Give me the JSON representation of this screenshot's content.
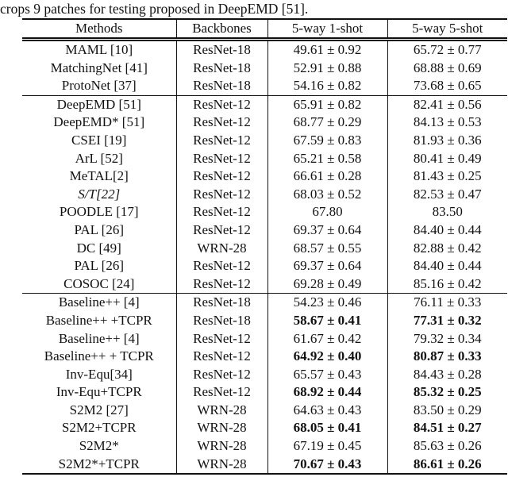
{
  "caption": "crops 9 patches for testing proposed in DeepEMD [51].",
  "colors": {
    "text": "#111111",
    "rule": "#111111",
    "background": "#ffffff"
  },
  "table": {
    "headers": [
      "Methods",
      "Backbones",
      "5-way 1-shot",
      "5-way 5-shot"
    ],
    "sections": [
      {
        "rows": [
          {
            "method": "MAML [10]",
            "backbone": "ResNet-18",
            "one_shot": "49.61 ± 0.92",
            "five_shot": "65.72 ± 0.77",
            "bold_values": false,
            "method_italic": false
          },
          {
            "method": "MatchingNet [41]",
            "backbone": "ResNet-18",
            "one_shot": "52.91 ± 0.88",
            "five_shot": "68.88 ± 0.69",
            "bold_values": false,
            "method_italic": false
          },
          {
            "method": "ProtoNet [37]",
            "backbone": "ResNet-18",
            "one_shot": "54.16 ± 0.82",
            "five_shot": "73.68 ± 0.65",
            "bold_values": false,
            "method_italic": false
          }
        ]
      },
      {
        "rows": [
          {
            "method": "DeepEMD [51]",
            "backbone": "ResNet-12",
            "one_shot": "65.91 ± 0.82",
            "five_shot": "82.41 ± 0.56",
            "bold_values": false,
            "method_italic": false
          },
          {
            "method": "DeepEMD* [51]",
            "backbone": "ResNet-12",
            "one_shot": "68.77 ± 0.29",
            "five_shot": "84.13 ± 0.53",
            "bold_values": false,
            "method_italic": false
          },
          {
            "method": "CSEI [19]",
            "backbone": "ResNet-12",
            "one_shot": "67.59 ± 0.83",
            "five_shot": "81.93 ± 0.36",
            "bold_values": false,
            "method_italic": false
          },
          {
            "method": "ArL [52]",
            "backbone": "ResNet-12",
            "one_shot": "65.21 ± 0.58",
            "five_shot": "80.41 ± 0.49",
            "bold_values": false,
            "method_italic": false
          },
          {
            "method": "MeTAL[2]",
            "backbone": "ResNet-12",
            "one_shot": "66.61 ± 0.28",
            "five_shot": "81.43 ± 0.25",
            "bold_values": false,
            "method_italic": false
          },
          {
            "method": "S/T[22]",
            "backbone": "ResNet-12",
            "one_shot": "68.03 ± 0.52",
            "five_shot": "82.53 ± 0.47",
            "bold_values": false,
            "method_italic": true
          },
          {
            "method": "POODLE [17]",
            "backbone": "ResNet-12",
            "one_shot": "67.80",
            "five_shot": "83.50",
            "bold_values": false,
            "method_italic": false
          },
          {
            "method": "PAL [26]",
            "backbone": "ResNet-12",
            "one_shot": "69.37 ± 0.64",
            "five_shot": "84.40 ± 0.44",
            "bold_values": false,
            "method_italic": false
          },
          {
            "method": "DC [49]",
            "backbone": "WRN-28",
            "one_shot": "68.57 ± 0.55",
            "five_shot": "82.88 ± 0.42",
            "bold_values": false,
            "method_italic": false
          },
          {
            "method": "PAL [26]",
            "backbone": "ResNet-12",
            "one_shot": "69.37 ± 0.64",
            "five_shot": "84.40 ± 0.44",
            "bold_values": false,
            "method_italic": false
          },
          {
            "method": "COSOC [24]",
            "backbone": "ResNet-12",
            "one_shot": "69.28 ± 0.49",
            "five_shot": "85.16 ± 0.42",
            "bold_values": false,
            "method_italic": false
          }
        ]
      },
      {
        "rows": [
          {
            "method": "Baseline++ [4]",
            "backbone": "ResNet-18",
            "one_shot": "54.23 ± 0.46",
            "five_shot": "76.11 ± 0.33",
            "bold_values": false,
            "method_italic": false
          },
          {
            "method": "Baseline++ +TCPR",
            "backbone": "ResNet-18",
            "one_shot": "58.67 ± 0.41",
            "five_shot": "77.31 ± 0.32",
            "bold_values": true,
            "method_italic": false
          },
          {
            "method": "Baseline++ [4]",
            "backbone": "ResNet-12",
            "one_shot": "61.67 ± 0.42",
            "five_shot": "79.32 ± 0.34",
            "bold_values": false,
            "method_italic": false
          },
          {
            "method": "Baseline++ + TCPR",
            "backbone": "ResNet-12",
            "one_shot": "64.92 ± 0.40",
            "five_shot": "80.87 ± 0.33",
            "bold_values": true,
            "method_italic": false
          },
          {
            "method": "Inv-Equ[34]",
            "backbone": "ResNet-12",
            "one_shot": "65.57 ± 0.43",
            "five_shot": "84.43 ± 0.28",
            "bold_values": false,
            "method_italic": false
          },
          {
            "method": "Inv-Equ+TCPR",
            "backbone": "ResNet-12",
            "one_shot": "68.92 ± 0.44",
            "five_shot": "85.32 ± 0.25",
            "bold_values": true,
            "method_italic": false
          },
          {
            "method": "S2M2 [27]",
            "backbone": "WRN-28",
            "one_shot": "64.63 ± 0.43",
            "five_shot": "83.50 ± 0.29",
            "bold_values": false,
            "method_italic": false
          },
          {
            "method": "S2M2+TCPR",
            "backbone": "WRN-28",
            "one_shot": "68.05 ± 0.41",
            "five_shot": "84.51 ± 0.27",
            "bold_values": true,
            "method_italic": false
          },
          {
            "method": "S2M2*",
            "backbone": "WRN-28",
            "one_shot": "67.19 ± 0.45",
            "five_shot": "85.63 ± 0.26",
            "bold_values": false,
            "method_italic": false
          },
          {
            "method": "S2M2*+TCPR",
            "backbone": "WRN-28",
            "one_shot": "70.67 ± 0.43",
            "five_shot": "86.61 ± 0.26",
            "bold_values": true,
            "method_italic": false
          }
        ]
      }
    ]
  }
}
